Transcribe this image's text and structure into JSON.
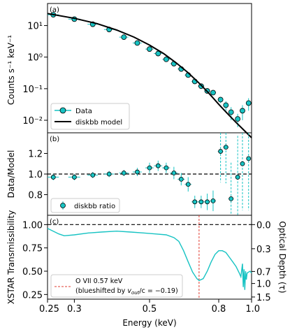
{
  "colors": {
    "data": "#17c3c3",
    "model": "#000000",
    "line_ref": "#000000",
    "marker": "#e03c31"
  },
  "panel_labels": [
    "(a)",
    "(b)",
    "(c)"
  ],
  "chart_data": [
    {
      "type": "scatter",
      "panel": "(a)",
      "ylabel": "Counts s⁻¹ keV⁻¹",
      "yscale": "log",
      "ylim": [
        0.004,
        50
      ],
      "xscale": "log",
      "xlim": [
        0.25,
        1.0
      ],
      "yticks": [
        {
          "v": 10,
          "l": "10¹"
        },
        {
          "v": 1,
          "l": "10⁰"
        },
        {
          "v": 0.1,
          "l": "10⁻¹"
        },
        {
          "v": 0.01,
          "l": "10⁻²"
        }
      ],
      "legend": [
        "Data",
        "diskbb model"
      ],
      "legend_position": "lower left",
      "series": [
        {
          "name": "Data",
          "points": [
            {
              "x": 0.26,
              "y": 22,
              "xerr": 0.01,
              "yerr": 1.5
            },
            {
              "x": 0.3,
              "y": 16,
              "xerr": 0.012,
              "yerr": 1.0
            },
            {
              "x": 0.34,
              "y": 11,
              "xerr": 0.012,
              "yerr": 0.8
            },
            {
              "x": 0.38,
              "y": 7.5,
              "xerr": 0.013,
              "yerr": 0.5
            },
            {
              "x": 0.42,
              "y": 4.3,
              "xerr": 0.013,
              "yerr": 0.3
            },
            {
              "x": 0.46,
              "y": 2.8,
              "xerr": 0.014,
              "yerr": 0.2
            },
            {
              "x": 0.5,
              "y": 1.8,
              "xerr": 0.014,
              "yerr": 0.15
            },
            {
              "x": 0.53,
              "y": 1.3,
              "xerr": 0.015,
              "yerr": 0.1
            },
            {
              "x": 0.56,
              "y": 0.85,
              "xerr": 0.015,
              "yerr": 0.08
            },
            {
              "x": 0.59,
              "y": 0.62,
              "xerr": 0.015,
              "yerr": 0.06
            },
            {
              "x": 0.62,
              "y": 0.42,
              "xerr": 0.015,
              "yerr": 0.05
            },
            {
              "x": 0.65,
              "y": 0.27,
              "xerr": 0.015,
              "yerr": 0.04
            },
            {
              "x": 0.68,
              "y": 0.17,
              "xerr": 0.015,
              "yerr": 0.03
            },
            {
              "x": 0.71,
              "y": 0.12,
              "xerr": 0.015,
              "yerr": 0.02
            },
            {
              "x": 0.74,
              "y": 0.085,
              "xerr": 0.015,
              "yerr": 0.015
            },
            {
              "x": 0.77,
              "y": 0.075,
              "xerr": 0.015,
              "yerr": 0.012
            },
            {
              "x": 0.81,
              "y": 0.045,
              "xerr": 0.015,
              "yerr": 0.01
            },
            {
              "x": 0.84,
              "y": 0.03,
              "xerr": 0.015,
              "yerr": 0.01
            },
            {
              "x": 0.87,
              "y": 0.018,
              "xerr": 0.015,
              "yerr": 0.008
            },
            {
              "x": 0.91,
              "y": 0.011,
              "xerr": 0.015,
              "yerr": 0.005
            },
            {
              "x": 0.94,
              "y": 0.02,
              "xerr": 0.015,
              "yerr": 0.01
            },
            {
              "x": 0.98,
              "y": 0.035,
              "xerr": 0.015,
              "yerr": 0.015
            }
          ]
        },
        {
          "name": "diskbb model",
          "line": [
            [
              0.25,
              24
            ],
            [
              0.3,
              17
            ],
            [
              0.35,
              11.5
            ],
            [
              0.4,
              7.2
            ],
            [
              0.45,
              4.3
            ],
            [
              0.5,
              2.4
            ],
            [
              0.55,
              1.3
            ],
            [
              0.6,
              0.65
            ],
            [
              0.65,
              0.32
            ],
            [
              0.7,
              0.15
            ],
            [
              0.75,
              0.07
            ],
            [
              0.8,
              0.032
            ],
            [
              0.85,
              0.016
            ],
            [
              0.9,
              0.0085
            ],
            [
              0.95,
              0.0048
            ],
            [
              1.0,
              0.0028
            ]
          ]
        }
      ]
    },
    {
      "type": "scatter",
      "panel": "(b)",
      "ylabel": "Data/Model",
      "ylim": [
        0.6,
        1.4
      ],
      "yticks": [
        {
          "v": 0.8,
          "l": "0.8"
        },
        {
          "v": 1.0,
          "l": "1.0"
        },
        {
          "v": 1.2,
          "l": "1.2"
        }
      ],
      "reference_line": 1.0,
      "legend": [
        "diskbb ratio"
      ],
      "legend_position": "lower left",
      "series": [
        {
          "name": "diskbb ratio",
          "points": [
            {
              "x": 0.26,
              "y": 0.97,
              "xerr": 0.01,
              "yerr": 0.03
            },
            {
              "x": 0.3,
              "y": 0.97,
              "xerr": 0.012,
              "yerr": 0.03
            },
            {
              "x": 0.34,
              "y": 0.99,
              "xerr": 0.012,
              "yerr": 0.03
            },
            {
              "x": 0.38,
              "y": 1.0,
              "xerr": 0.013,
              "yerr": 0.03
            },
            {
              "x": 0.42,
              "y": 1.01,
              "xerr": 0.013,
              "yerr": 0.03
            },
            {
              "x": 0.46,
              "y": 1.02,
              "xerr": 0.014,
              "yerr": 0.04
            },
            {
              "x": 0.5,
              "y": 1.06,
              "xerr": 0.014,
              "yerr": 0.05
            },
            {
              "x": 0.53,
              "y": 1.08,
              "xerr": 0.015,
              "yerr": 0.05
            },
            {
              "x": 0.56,
              "y": 1.06,
              "xerr": 0.015,
              "yerr": 0.05
            },
            {
              "x": 0.59,
              "y": 1.01,
              "xerr": 0.015,
              "yerr": 0.06
            },
            {
              "x": 0.62,
              "y": 0.95,
              "xerr": 0.015,
              "yerr": 0.06
            },
            {
              "x": 0.65,
              "y": 0.9,
              "xerr": 0.015,
              "yerr": 0.07
            },
            {
              "x": 0.68,
              "y": 0.73,
              "xerr": 0.015,
              "yerr": 0.06
            },
            {
              "x": 0.71,
              "y": 0.73,
              "xerr": 0.015,
              "yerr": 0.06
            },
            {
              "x": 0.74,
              "y": 0.73,
              "xerr": 0.015,
              "yerr": 0.08
            },
            {
              "x": 0.77,
              "y": 0.74,
              "xerr": 0.015,
              "yerr": 0.1
            },
            {
              "x": 0.81,
              "y": 1.22,
              "xerr": 0.015,
              "yerr": 0.3
            },
            {
              "x": 0.84,
              "y": 1.26,
              "xerr": 0.015,
              "yerr": 0.35
            },
            {
              "x": 0.87,
              "y": 0.76,
              "xerr": 0.015,
              "yerr": 0.35
            },
            {
              "x": 0.91,
              "y": 0.97,
              "xerr": 0.015,
              "yerr": 0.4
            },
            {
              "x": 0.94,
              "y": 1.1,
              "xerr": 0.015,
              "yerr": 0.45
            },
            {
              "x": 0.98,
              "y": 1.15,
              "xerr": 0.015,
              "yerr": 0.5
            }
          ]
        }
      ]
    },
    {
      "type": "line",
      "panel": "(c)",
      "ylabel_left": "XSTAR Transmissibility",
      "ylim": [
        0.2,
        1.1
      ],
      "yticks_left": [
        {
          "v": 1.0,
          "l": "1.00"
        },
        {
          "v": 0.75,
          "l": "0.75"
        },
        {
          "v": 0.5,
          "l": "0.50"
        },
        {
          "v": 0.25,
          "l": "0.25"
        }
      ],
      "ylabel_right": "Optical Depth (τ)",
      "yticks_right": [
        {
          "v": 1.0,
          "l": "0.0"
        },
        {
          "v": 0.741,
          "l": "0.3"
        },
        {
          "v": 0.497,
          "l": "0.7"
        },
        {
          "v": 0.368,
          "l": "1.0"
        },
        {
          "v": 0.223,
          "l": "1.5"
        }
      ],
      "reference_line": 1.0,
      "xlabel": "Energy (keV)",
      "xticks": [
        {
          "v": 0.25,
          "l": "0.25"
        },
        {
          "v": 0.3,
          "l": "0.3"
        },
        {
          "v": 0.5,
          "l": "0.5"
        },
        {
          "v": 0.8,
          "l": "0.8"
        },
        {
          "v": 1.0,
          "l": "1.0"
        }
      ],
      "marker_line": {
        "x": 0.7
      },
      "legend_line1": "O VII 0.57 keV",
      "legend_line2_a": "(blueshifted by ",
      "legend_line2_b": "v",
      "legend_line2_c": "out",
      "legend_line2_d": "/c = −0.19)",
      "legend_position": "lower left",
      "series": [
        {
          "name": "XSTAR Transmissibility",
          "line": [
            [
              0.25,
              0.96
            ],
            [
              0.27,
              0.9
            ],
            [
              0.28,
              0.88
            ],
            [
              0.3,
              0.89
            ],
            [
              0.33,
              0.91
            ],
            [
              0.36,
              0.92
            ],
            [
              0.4,
              0.93
            ],
            [
              0.44,
              0.92
            ],
            [
              0.48,
              0.91
            ],
            [
              0.52,
              0.9
            ],
            [
              0.56,
              0.89
            ],
            [
              0.59,
              0.86
            ],
            [
              0.61,
              0.82
            ],
            [
              0.63,
              0.72
            ],
            [
              0.65,
              0.6
            ],
            [
              0.67,
              0.49
            ],
            [
              0.69,
              0.42
            ],
            [
              0.7,
              0.4
            ],
            [
              0.72,
              0.42
            ],
            [
              0.74,
              0.5
            ],
            [
              0.76,
              0.6
            ],
            [
              0.78,
              0.68
            ],
            [
              0.8,
              0.72
            ],
            [
              0.82,
              0.72
            ],
            [
              0.84,
              0.7
            ],
            [
              0.86,
              0.65
            ],
            [
              0.88,
              0.6
            ],
            [
              0.9,
              0.55
            ],
            [
              0.92,
              0.48
            ],
            [
              0.93,
              0.44
            ],
            [
              0.94,
              0.58
            ],
            [
              0.945,
              0.33
            ],
            [
              0.95,
              0.52
            ],
            [
              0.955,
              0.3
            ],
            [
              0.96,
              0.5
            ],
            [
              0.965,
              0.41
            ],
            [
              0.97,
              0.48
            ],
            [
              0.98,
              0.49
            ],
            [
              0.99,
              0.5
            ],
            [
              1.0,
              0.48
            ]
          ]
        }
      ]
    }
  ]
}
